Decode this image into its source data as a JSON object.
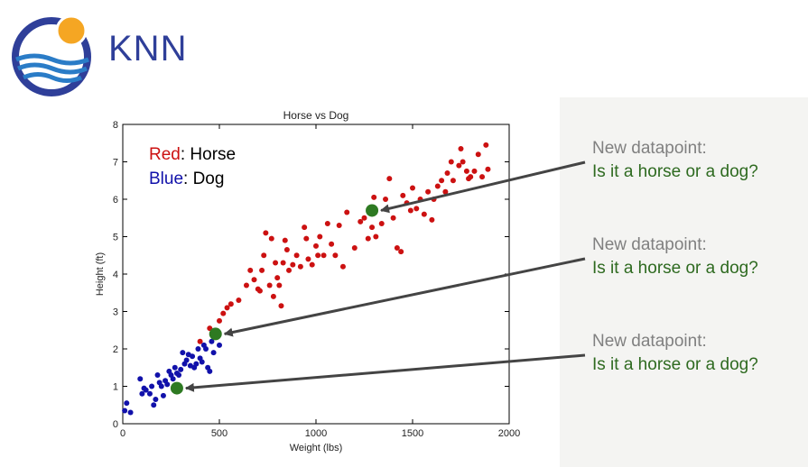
{
  "slide": {
    "title": "KNN",
    "colors": {
      "title": "#2f3f99",
      "panel": "#f4f4f2",
      "question_gray": "#808080",
      "question_green": "#2e6a20"
    }
  },
  "logo": {
    "icon": "sun-over-waves-logo"
  },
  "callouts": [
    {
      "line1": "New datapoint:",
      "line2": "Is it a horse or a dog?"
    },
    {
      "line1": "New datapoint:",
      "line2": "Is it a horse or a dog?"
    },
    {
      "line1": "New datapoint:",
      "line2": "Is it a horse or a dog?"
    }
  ],
  "chart_data": {
    "type": "scatter",
    "title": "Horse vs Dog",
    "xlabel": "Weight (lbs)",
    "ylabel": "Height (ft)",
    "xlim": [
      0,
      2000
    ],
    "ylim": [
      0,
      8
    ],
    "xticks": [
      "0",
      "500",
      "1000",
      "1500",
      "2000"
    ],
    "yticks": [
      "0",
      "1",
      "2",
      "3",
      "4",
      "5",
      "6",
      "7",
      "8"
    ],
    "grid": false,
    "legend": {
      "placement": "top-left",
      "entries": [
        {
          "color_word": "Red",
          "label": ": Horse",
          "color": "#cc1111"
        },
        {
          "color_word": "Blue",
          "label": ": Dog",
          "color": "#1111aa"
        }
      ]
    },
    "series": [
      {
        "name": "Horse",
        "color": "#cc1111",
        "points": [
          [
            400,
            2.2
          ],
          [
            450,
            2.55
          ],
          [
            470,
            2.45
          ],
          [
            500,
            2.75
          ],
          [
            520,
            2.95
          ],
          [
            540,
            3.1
          ],
          [
            560,
            3.2
          ],
          [
            600,
            3.3
          ],
          [
            640,
            3.7
          ],
          [
            660,
            4.1
          ],
          [
            680,
            3.85
          ],
          [
            700,
            3.6
          ],
          [
            710,
            3.55
          ],
          [
            720,
            4.1
          ],
          [
            730,
            4.5
          ],
          [
            740,
            5.1
          ],
          [
            760,
            3.7
          ],
          [
            770,
            4.95
          ],
          [
            780,
            3.4
          ],
          [
            790,
            4.3
          ],
          [
            800,
            3.9
          ],
          [
            810,
            3.7
          ],
          [
            820,
            3.15
          ],
          [
            830,
            4.3
          ],
          [
            840,
            4.9
          ],
          [
            850,
            4.65
          ],
          [
            860,
            4.1
          ],
          [
            880,
            4.25
          ],
          [
            900,
            4.5
          ],
          [
            920,
            4.2
          ],
          [
            940,
            5.25
          ],
          [
            950,
            4.95
          ],
          [
            960,
            4.4
          ],
          [
            980,
            4.25
          ],
          [
            1000,
            4.75
          ],
          [
            1010,
            4.5
          ],
          [
            1020,
            5.0
          ],
          [
            1040,
            4.5
          ],
          [
            1060,
            5.35
          ],
          [
            1080,
            4.8
          ],
          [
            1100,
            4.5
          ],
          [
            1120,
            5.3
          ],
          [
            1140,
            4.2
          ],
          [
            1160,
            5.65
          ],
          [
            1200,
            4.7
          ],
          [
            1230,
            5.4
          ],
          [
            1250,
            5.5
          ],
          [
            1270,
            4.95
          ],
          [
            1290,
            5.25
          ],
          [
            1300,
            6.05
          ],
          [
            1310,
            5.0
          ],
          [
            1340,
            5.35
          ],
          [
            1360,
            6.0
          ],
          [
            1380,
            6.55
          ],
          [
            1400,
            5.5
          ],
          [
            1420,
            4.7
          ],
          [
            1440,
            4.6
          ],
          [
            1450,
            6.1
          ],
          [
            1470,
            5.9
          ],
          [
            1490,
            5.7
          ],
          [
            1500,
            6.3
          ],
          [
            1520,
            5.75
          ],
          [
            1540,
            6.0
          ],
          [
            1560,
            5.6
          ],
          [
            1580,
            6.2
          ],
          [
            1600,
            5.45
          ],
          [
            1610,
            6.0
          ],
          [
            1630,
            6.35
          ],
          [
            1650,
            6.5
          ],
          [
            1670,
            6.2
          ],
          [
            1680,
            6.7
          ],
          [
            1700,
            7.0
          ],
          [
            1710,
            6.5
          ],
          [
            1740,
            6.9
          ],
          [
            1750,
            7.35
          ],
          [
            1760,
            7.0
          ],
          [
            1780,
            6.75
          ],
          [
            1790,
            6.55
          ],
          [
            1800,
            6.6
          ],
          [
            1820,
            6.75
          ],
          [
            1840,
            7.2
          ],
          [
            1860,
            6.6
          ],
          [
            1880,
            7.45
          ],
          [
            1890,
            6.8
          ]
        ]
      },
      {
        "name": "Dog",
        "color": "#1111aa",
        "points": [
          [
            10,
            0.35
          ],
          [
            20,
            0.55
          ],
          [
            40,
            0.3
          ],
          [
            90,
            1.2
          ],
          [
            100,
            0.8
          ],
          [
            110,
            0.95
          ],
          [
            120,
            0.9
          ],
          [
            140,
            0.8
          ],
          [
            150,
            1.0
          ],
          [
            160,
            0.5
          ],
          [
            170,
            0.65
          ],
          [
            180,
            1.3
          ],
          [
            190,
            1.1
          ],
          [
            200,
            1.0
          ],
          [
            210,
            0.75
          ],
          [
            220,
            1.15
          ],
          [
            230,
            1.05
          ],
          [
            240,
            1.4
          ],
          [
            250,
            1.3
          ],
          [
            260,
            1.2
          ],
          [
            270,
            1.5
          ],
          [
            280,
            1.35
          ],
          [
            290,
            1.3
          ],
          [
            300,
            1.45
          ],
          [
            310,
            1.9
          ],
          [
            320,
            1.6
          ],
          [
            330,
            1.7
          ],
          [
            340,
            1.85
          ],
          [
            350,
            1.55
          ],
          [
            360,
            1.8
          ],
          [
            370,
            1.5
          ],
          [
            380,
            1.6
          ],
          [
            390,
            2.0
          ],
          [
            400,
            1.75
          ],
          [
            410,
            1.65
          ],
          [
            420,
            2.1
          ],
          [
            430,
            2.0
          ],
          [
            440,
            1.5
          ],
          [
            450,
            1.4
          ],
          [
            460,
            2.2
          ],
          [
            470,
            1.9
          ],
          [
            500,
            2.1
          ]
        ]
      },
      {
        "name": "New datapoint",
        "color": "#2e7a22",
        "points": [
          [
            1290,
            5.7
          ],
          [
            480,
            2.4
          ],
          [
            280,
            0.95
          ]
        ]
      }
    ]
  }
}
